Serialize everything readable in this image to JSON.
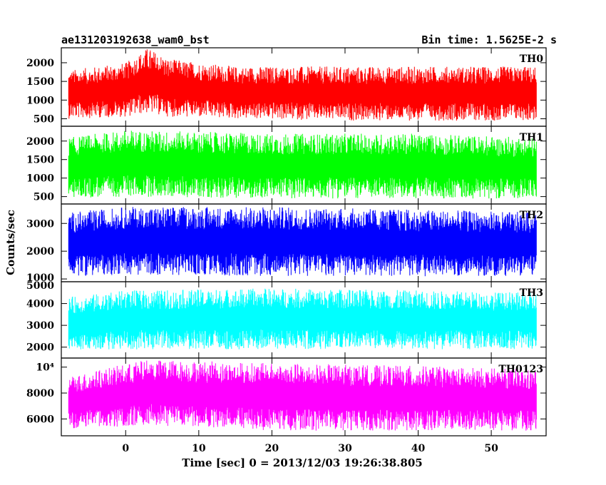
{
  "chart_data": {
    "type": "line",
    "title_left": "ae131203192638_wam0_bst",
    "title_right": "Bin time: 1.5625E-2 s",
    "xlabel": "Time [sec] 0 = 2013/12/03 19:26:38.805",
    "ylabel": "Counts/sec",
    "xlim": [
      -8.8,
      57.5
    ],
    "x_ticks": [
      0,
      10,
      20,
      30,
      40,
      50
    ],
    "x_tick_labels": [
      "0",
      "10",
      "20",
      "30",
      "40",
      "50"
    ],
    "data_x_range": [
      -7.8,
      56.2
    ],
    "bin_time": 0.015625,
    "grid": false,
    "panels": [
      {
        "name": "TH0",
        "color": "#ff0000",
        "ylim": [
          300,
          2400
        ],
        "y_ticks": [
          500,
          1000,
          1500,
          2000
        ],
        "y_tick_labels": [
          "500",
          "1000",
          "1500",
          "2000"
        ],
        "approx_envelope": [
          {
            "x": -7.8,
            "min": 500,
            "max": 1800
          },
          {
            "x": 0,
            "min": 550,
            "max": 2000
          },
          {
            "x": 3,
            "min": 650,
            "max": 2400
          },
          {
            "x": 6,
            "min": 550,
            "max": 2100
          },
          {
            "x": 15,
            "min": 500,
            "max": 1900
          },
          {
            "x": 30,
            "min": 450,
            "max": 1900
          },
          {
            "x": 45,
            "min": 450,
            "max": 1900
          },
          {
            "x": 56,
            "min": 450,
            "max": 1900
          }
        ]
      },
      {
        "name": "TH1",
        "color": "#00ff00",
        "ylim": [
          300,
          2400
        ],
        "y_ticks": [
          500,
          1000,
          1500,
          2000
        ],
        "y_tick_labels": [
          "500",
          "1000",
          "1500",
          "2000"
        ],
        "approx_envelope": [
          {
            "x": -7.8,
            "min": 450,
            "max": 2100
          },
          {
            "x": 0,
            "min": 500,
            "max": 2300
          },
          {
            "x": 20,
            "min": 450,
            "max": 2200
          },
          {
            "x": 40,
            "min": 450,
            "max": 2200
          },
          {
            "x": 56,
            "min": 450,
            "max": 2100
          }
        ]
      },
      {
        "name": "TH2",
        "color": "#0000ff",
        "ylim": [
          900,
          3700
        ],
        "y_ticks": [
          1000,
          2000,
          3000
        ],
        "y_tick_labels": [
          "1000",
          "2000",
          "3000"
        ],
        "approx_envelope": [
          {
            "x": -7.8,
            "min": 1100,
            "max": 3400
          },
          {
            "x": 0,
            "min": 1150,
            "max": 3600
          },
          {
            "x": 20,
            "min": 1100,
            "max": 3600
          },
          {
            "x": 40,
            "min": 1100,
            "max": 3500
          },
          {
            "x": 56,
            "min": 1100,
            "max": 3400
          }
        ]
      },
      {
        "name": "TH3",
        "color": "#00ffff",
        "ylim": [
          1500,
          5000
        ],
        "y_ticks": [
          2000,
          3000,
          4000,
          5000
        ],
        "y_tick_labels": [
          "2000",
          "3000",
          "4000",
          "5000"
        ],
        "approx_envelope": [
          {
            "x": -7.8,
            "min": 1900,
            "max": 4300
          },
          {
            "x": 0,
            "min": 1900,
            "max": 4600
          },
          {
            "x": 20,
            "min": 1900,
            "max": 4700
          },
          {
            "x": 40,
            "min": 1900,
            "max": 4600
          },
          {
            "x": 56,
            "min": 1900,
            "max": 4500
          }
        ]
      },
      {
        "name": "TH0123",
        "color": "#ff00ff",
        "ylim": [
          4700,
          10700
        ],
        "y_ticks": [
          6000,
          8000,
          10000
        ],
        "y_tick_labels": [
          "6000",
          "8000",
          "10⁴"
        ],
        "approx_envelope": [
          {
            "x": -7.8,
            "min": 5200,
            "max": 9300
          },
          {
            "x": 3,
            "min": 5500,
            "max": 10600
          },
          {
            "x": 20,
            "min": 5100,
            "max": 10300
          },
          {
            "x": 40,
            "min": 5100,
            "max": 10100
          },
          {
            "x": 56,
            "min": 5100,
            "max": 9800
          }
        ]
      }
    ]
  }
}
